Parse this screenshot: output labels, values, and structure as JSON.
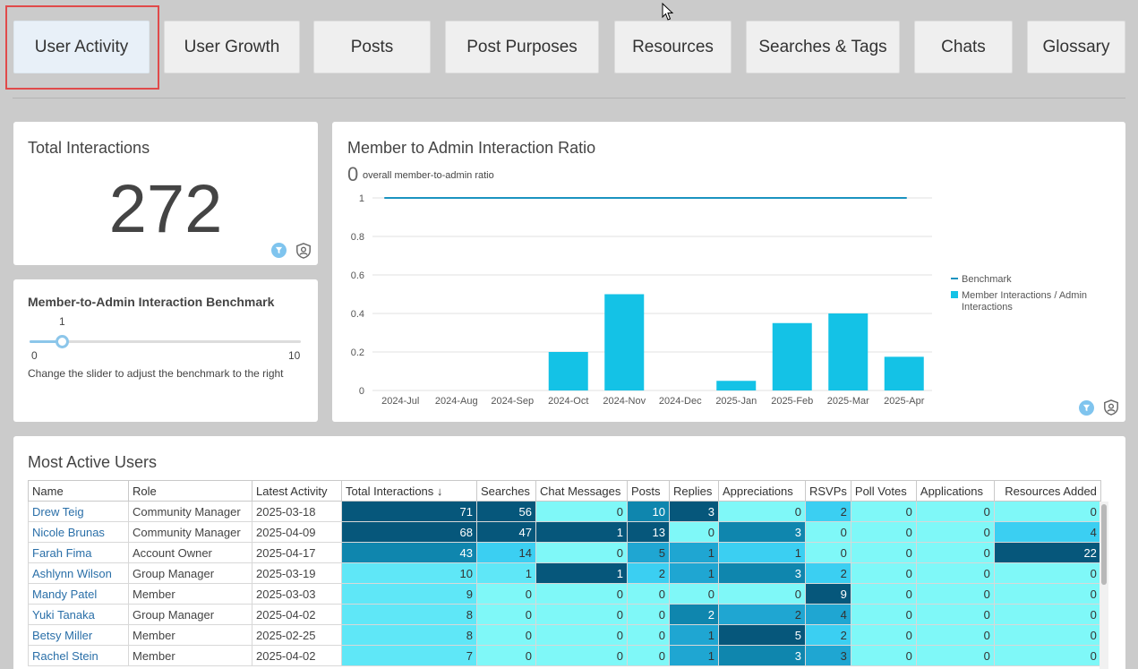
{
  "tabs": [
    {
      "label": "User Activity",
      "active": true
    },
    {
      "label": "User Growth"
    },
    {
      "label": "Posts"
    },
    {
      "label": "Post Purposes"
    },
    {
      "label": "Resources"
    },
    {
      "label": "Searches & Tags"
    },
    {
      "label": "Chats"
    },
    {
      "label": "Glossary"
    }
  ],
  "kpi": {
    "title": "Total Interactions",
    "value": "272"
  },
  "slider": {
    "title": "Member-to-Admin Interaction Benchmark",
    "value": 1,
    "min": 0,
    "max": 10,
    "value_label": "1",
    "min_label": "0",
    "max_label": "10",
    "help": "Change the slider to adjust the benchmark to the right"
  },
  "ratio_card": {
    "title": "Member to Admin Interaction Ratio",
    "big_value": "0",
    "sub_label": "overall member-to-admin ratio"
  },
  "chart_data": {
    "type": "bar",
    "categories": [
      "2024-Jul",
      "2024-Aug",
      "2024-Sep",
      "2024-Oct",
      "2024-Nov",
      "2024-Dec",
      "2025-Jan",
      "2025-Feb",
      "2025-Mar",
      "2025-Apr"
    ],
    "series": [
      {
        "name": "Member Interactions / Admin Interactions",
        "values": [
          0,
          0,
          0,
          0.2,
          0.5,
          0,
          0.05,
          0.35,
          0.4,
          0.175
        ],
        "color": "#14c2e6"
      },
      {
        "name": "Benchmark",
        "values": [
          1,
          1,
          1,
          1,
          1,
          1,
          1,
          1,
          1,
          1
        ],
        "type": "line",
        "color": "#1a93c0"
      }
    ],
    "yticks": [
      "0",
      "0.2",
      "0.4",
      "0.6",
      "0.8",
      "1"
    ],
    "ylim": [
      0,
      1
    ],
    "grid": true,
    "legend": "right"
  },
  "table": {
    "title": "Most Active Users",
    "columns": [
      "Name",
      "Role",
      "Latest Activity",
      "Total Interactions",
      "Searches",
      "Chat Messages",
      "Posts",
      "Replies",
      "Appreciations",
      "RSVPs",
      "Poll Votes",
      "Applications",
      "Resources Added"
    ],
    "sort_indicator": "↓",
    "rows": [
      [
        "Drew Teig",
        "Community Manager",
        "2025-03-18",
        "71",
        "56",
        "0",
        "10",
        "3",
        "0",
        "2",
        "0",
        "0",
        "0"
      ],
      [
        "Nicole Brunas",
        "Community Manager",
        "2025-04-09",
        "68",
        "47",
        "1",
        "13",
        "0",
        "3",
        "0",
        "0",
        "0",
        "4"
      ],
      [
        "Farah Fima",
        "Account Owner",
        "2025-04-17",
        "43",
        "14",
        "0",
        "5",
        "1",
        "1",
        "0",
        "0",
        "0",
        "22"
      ],
      [
        "Ashlynn Wilson",
        "Group Manager",
        "2025-03-19",
        "10",
        "1",
        "1",
        "2",
        "1",
        "3",
        "2",
        "0",
        "0",
        "0"
      ],
      [
        "Mandy Patel",
        "Member",
        "2025-03-03",
        "9",
        "0",
        "0",
        "0",
        "0",
        "0",
        "9",
        "0",
        "0",
        "0"
      ],
      [
        "Yuki Tanaka",
        "Group Manager",
        "2025-04-02",
        "8",
        "0",
        "0",
        "0",
        "2",
        "2",
        "4",
        "0",
        "0",
        "0"
      ],
      [
        "Betsy Miller",
        "Member",
        "2025-02-25",
        "8",
        "0",
        "0",
        "0",
        "1",
        "5",
        "2",
        "0",
        "0",
        "0"
      ],
      [
        "Rachel Stein",
        "Member",
        "2025-04-02",
        "7",
        "0",
        "0",
        "0",
        "1",
        "3",
        "3",
        "0",
        "0",
        "0"
      ]
    ]
  }
}
